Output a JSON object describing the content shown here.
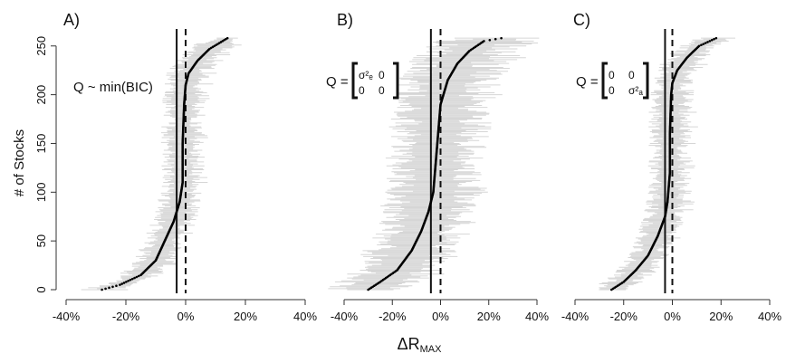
{
  "figure": {
    "ylabel": "# of Stocks",
    "xlabel_main": "ΔR",
    "xlabel_sub": "MAX"
  },
  "chart_data": [
    {
      "type": "scatter",
      "panel_label": "A)",
      "annotation": "Q ~ min(BIC)",
      "xlim": [
        -40,
        40
      ],
      "ylim": [
        0,
        260
      ],
      "x_ticks": [
        "-40%",
        "-20%",
        "0%",
        "20%",
        "40%"
      ],
      "y_ticks": [
        "0",
        "50",
        "100",
        "150",
        "200",
        "250"
      ],
      "solid_line_x": -3,
      "dashed_line_x": 0,
      "curve": [
        {
          "x": -28,
          "y": 0
        },
        {
          "x": -22,
          "y": 5
        },
        {
          "x": -15,
          "y": 15
        },
        {
          "x": -10,
          "y": 30
        },
        {
          "x": -7,
          "y": 50
        },
        {
          "x": -4,
          "y": 70
        },
        {
          "x": -2,
          "y": 90
        },
        {
          "x": -1,
          "y": 110
        },
        {
          "x": -1,
          "y": 150
        },
        {
          "x": -0.5,
          "y": 190
        },
        {
          "x": 0,
          "y": 210
        },
        {
          "x": 1,
          "y": 222
        },
        {
          "x": 4,
          "y": 235
        },
        {
          "x": 8,
          "y": 247
        },
        {
          "x": 14,
          "y": 258
        }
      ],
      "interval_halfwidth": 5
    },
    {
      "type": "scatter",
      "panel_label": "B)",
      "annotation_prefix": "Q =",
      "matrix": [
        [
          "σ²ₑ",
          "0"
        ],
        [
          "0",
          "0"
        ]
      ],
      "xlim": [
        -40,
        40
      ],
      "ylim": [
        0,
        260
      ],
      "x_ticks": [
        "-40%",
        "-20%",
        "0%",
        "20%",
        "40%"
      ],
      "solid_line_x": -4,
      "dashed_line_x": 0,
      "curve": [
        {
          "x": -30,
          "y": 0
        },
        {
          "x": -25,
          "y": 8
        },
        {
          "x": -18,
          "y": 20
        },
        {
          "x": -12,
          "y": 40
        },
        {
          "x": -8,
          "y": 60
        },
        {
          "x": -5,
          "y": 80
        },
        {
          "x": -3,
          "y": 100
        },
        {
          "x": -2,
          "y": 130
        },
        {
          "x": -1,
          "y": 160
        },
        {
          "x": 0,
          "y": 190
        },
        {
          "x": 3,
          "y": 215
        },
        {
          "x": 7,
          "y": 232
        },
        {
          "x": 12,
          "y": 245
        },
        {
          "x": 18,
          "y": 255
        },
        {
          "x": 30,
          "y": 260
        }
      ],
      "interval_halfwidth": 14
    },
    {
      "type": "scatter",
      "panel_label": "C)",
      "annotation_prefix": "Q =",
      "matrix": [
        [
          "0",
          "0"
        ],
        [
          "0",
          "σ²ₐ"
        ]
      ],
      "xlim": [
        -40,
        40
      ],
      "ylim": [
        0,
        260
      ],
      "x_ticks": [
        "-40%",
        "-20%",
        "0%",
        "20%",
        "40%"
      ],
      "solid_line_x": -3,
      "dashed_line_x": 0,
      "curve": [
        {
          "x": -25,
          "y": 0
        },
        {
          "x": -20,
          "y": 8
        },
        {
          "x": -15,
          "y": 20
        },
        {
          "x": -10,
          "y": 35
        },
        {
          "x": -6,
          "y": 55
        },
        {
          "x": -3,
          "y": 75
        },
        {
          "x": -2,
          "y": 90
        },
        {
          "x": -1,
          "y": 120
        },
        {
          "x": -1,
          "y": 160
        },
        {
          "x": -0.5,
          "y": 200
        },
        {
          "x": 0,
          "y": 212
        },
        {
          "x": 2,
          "y": 225
        },
        {
          "x": 6,
          "y": 238
        },
        {
          "x": 11,
          "y": 250
        },
        {
          "x": 18,
          "y": 258
        }
      ],
      "interval_halfwidth": 6
    }
  ]
}
